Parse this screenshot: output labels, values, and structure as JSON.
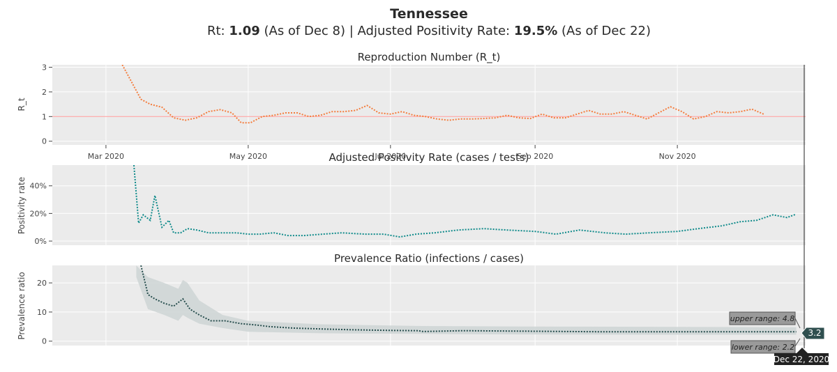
{
  "header": {
    "state": "Tennessee",
    "rt_label": "Rt: ",
    "rt_value": "1.09",
    "rt_asof": " (As of Dec 8) | Adjusted Positivity Rate: ",
    "pos_value": "19.5%",
    "pos_asof": " (As of Dec 22)"
  },
  "colors": {
    "rt": "#f47c3c",
    "positivity": "#0e8a8a",
    "prevalence": "#264d4d",
    "band": "#cfd6d6",
    "reference_line": "#ff9a9a",
    "plot_bg": "#ebebeb"
  },
  "chart_data": [
    {
      "type": "line",
      "title": "Reproduction Number (R_t)",
      "ylabel": "R_t",
      "ylim": [
        -0.15,
        3.1
      ],
      "yticks": [
        0,
        1,
        2,
        3
      ],
      "ytick_labels": [
        "0",
        "1",
        "2",
        "3"
      ],
      "xticks": [
        "2020-03-01",
        "2020-05-01",
        "2020-07-01",
        "2020-09-01",
        "2020-11-01"
      ],
      "xtick_labels": [
        "Mar 2020",
        "May 2020",
        "Jul 2020",
        "Sep 2020",
        "Nov 2020"
      ],
      "reference_line": 1,
      "series": [
        {
          "x": [
            "2020-03-08",
            "2020-03-12",
            "2020-03-16",
            "2020-03-20",
            "2020-03-25",
            "2020-03-30",
            "2020-04-04",
            "2020-04-09",
            "2020-04-14",
            "2020-04-19",
            "2020-04-24",
            "2020-04-28",
            "2020-05-02",
            "2020-05-07",
            "2020-05-12",
            "2020-05-17",
            "2020-05-22",
            "2020-05-27",
            "2020-06-01",
            "2020-06-06",
            "2020-06-11",
            "2020-06-16",
            "2020-06-21",
            "2020-06-26",
            "2020-07-01",
            "2020-07-06",
            "2020-07-11",
            "2020-07-16",
            "2020-07-21",
            "2020-07-26",
            "2020-07-31",
            "2020-08-05",
            "2020-08-10",
            "2020-08-15",
            "2020-08-20",
            "2020-08-25",
            "2020-08-30",
            "2020-09-04",
            "2020-09-09",
            "2020-09-14",
            "2020-09-19",
            "2020-09-24",
            "2020-09-29",
            "2020-10-04",
            "2020-10-09",
            "2020-10-14",
            "2020-10-19",
            "2020-10-24",
            "2020-10-29",
            "2020-11-03",
            "2020-11-08",
            "2020-11-13",
            "2020-11-18",
            "2020-11-23",
            "2020-11-28",
            "2020-12-03",
            "2020-12-08"
          ],
          "y": [
            3.1,
            2.4,
            1.7,
            1.5,
            1.38,
            0.95,
            0.85,
            0.95,
            1.2,
            1.28,
            1.15,
            0.75,
            0.75,
            1.0,
            1.05,
            1.15,
            1.15,
            1.0,
            1.05,
            1.2,
            1.2,
            1.25,
            1.45,
            1.15,
            1.1,
            1.2,
            1.05,
            1.0,
            0.9,
            0.85,
            0.9,
            0.9,
            0.92,
            0.95,
            1.05,
            0.95,
            0.92,
            1.1,
            0.95,
            0.95,
            1.1,
            1.25,
            1.1,
            1.1,
            1.2,
            1.05,
            0.9,
            1.15,
            1.4,
            1.2,
            0.9,
            1.0,
            1.2,
            1.15,
            1.2,
            1.3,
            1.1
          ]
        }
      ]
    },
    {
      "type": "line",
      "title": "Adjusted Positivity Rate (cases / tests)",
      "ylabel": "Positivity rate",
      "ylim": [
        -3,
        55
      ],
      "yticks": [
        0,
        20,
        40
      ],
      "ytick_labels": [
        "0%",
        "20%",
        "40%"
      ],
      "series": [
        {
          "x": [
            "2020-03-13",
            "2020-03-15",
            "2020-03-17",
            "2020-03-20",
            "2020-03-22",
            "2020-03-25",
            "2020-03-28",
            "2020-03-30",
            "2020-04-02",
            "2020-04-05",
            "2020-04-09",
            "2020-04-14",
            "2020-04-20",
            "2020-04-26",
            "2020-05-01",
            "2020-05-06",
            "2020-05-12",
            "2020-05-18",
            "2020-05-25",
            "2020-06-02",
            "2020-06-10",
            "2020-06-20",
            "2020-06-28",
            "2020-07-05",
            "2020-07-12",
            "2020-07-20",
            "2020-07-30",
            "2020-08-10",
            "2020-08-20",
            "2020-09-01",
            "2020-09-10",
            "2020-09-20",
            "2020-10-01",
            "2020-10-10",
            "2020-10-20",
            "2020-11-01",
            "2020-11-10",
            "2020-11-20",
            "2020-11-28",
            "2020-12-05",
            "2020-12-12",
            "2020-12-18",
            "2020-12-22"
          ],
          "y": [
            55,
            13,
            19,
            15,
            33,
            10,
            15,
            6,
            6,
            9,
            8,
            6,
            6,
            6,
            5,
            5,
            6,
            4,
            4,
            5,
            6,
            5,
            5,
            3,
            5,
            6,
            8,
            9,
            8,
            7,
            5,
            8,
            6,
            5,
            6,
            7,
            9,
            11,
            14,
            15,
            19,
            17,
            19.5
          ]
        }
      ]
    },
    {
      "type": "area",
      "title": "Prevalence Ratio (infections / cases)",
      "ylabel": "Prevalence ratio",
      "ylim": [
        -1.5,
        26
      ],
      "yticks": [
        0,
        10,
        20
      ],
      "ytick_labels": [
        "0",
        "10",
        "20"
      ],
      "series": [
        {
          "name": "",
          "x": [
            "2020-03-16",
            "2020-03-19",
            "2020-03-22",
            "2020-03-26",
            "2020-03-30",
            "2020-04-03",
            "2020-04-06",
            "2020-04-10",
            "2020-04-15",
            "2020-04-21",
            "2020-04-28",
            "2020-05-05",
            "2020-05-10",
            "2020-05-20",
            "2020-06-01",
            "2020-06-15",
            "2020-07-01",
            "2020-07-13",
            "2020-07-15",
            "2020-08-01",
            "2020-09-01",
            "2020-10-01",
            "2020-11-01",
            "2020-12-01",
            "2020-12-22"
          ],
          "y": [
            26,
            16,
            14.5,
            13,
            12,
            14.5,
            11,
            9,
            7,
            7,
            6,
            5.5,
            5,
            4.5,
            4.2,
            3.9,
            3.7,
            3.6,
            3.3,
            3.6,
            3.4,
            3.2,
            3.2,
            3.2,
            3.2
          ]
        }
      ],
      "band": {
        "x": [
          "2020-03-14",
          "2020-03-19",
          "2020-03-26",
          "2020-04-01",
          "2020-04-03",
          "2020-04-05",
          "2020-04-10",
          "2020-04-20",
          "2020-05-01",
          "2020-06-01",
          "2020-07-15",
          "2020-09-01",
          "2020-11-01",
          "2020-12-22"
        ],
        "upper": [
          26,
          22,
          20,
          18,
          21,
          20,
          14,
          9,
          7,
          5.8,
          5.2,
          5.0,
          4.9,
          4.8
        ],
        "lower": [
          22,
          11,
          9,
          7,
          9,
          8,
          6,
          4.5,
          3.2,
          2.7,
          2.5,
          2.3,
          2.2,
          2.2
        ]
      },
      "hover": {
        "date": "Dec 22, 2020",
        "value": "3.2",
        "upper": "upper range: 4.8",
        "lower": "lower range: 2.2"
      }
    }
  ]
}
